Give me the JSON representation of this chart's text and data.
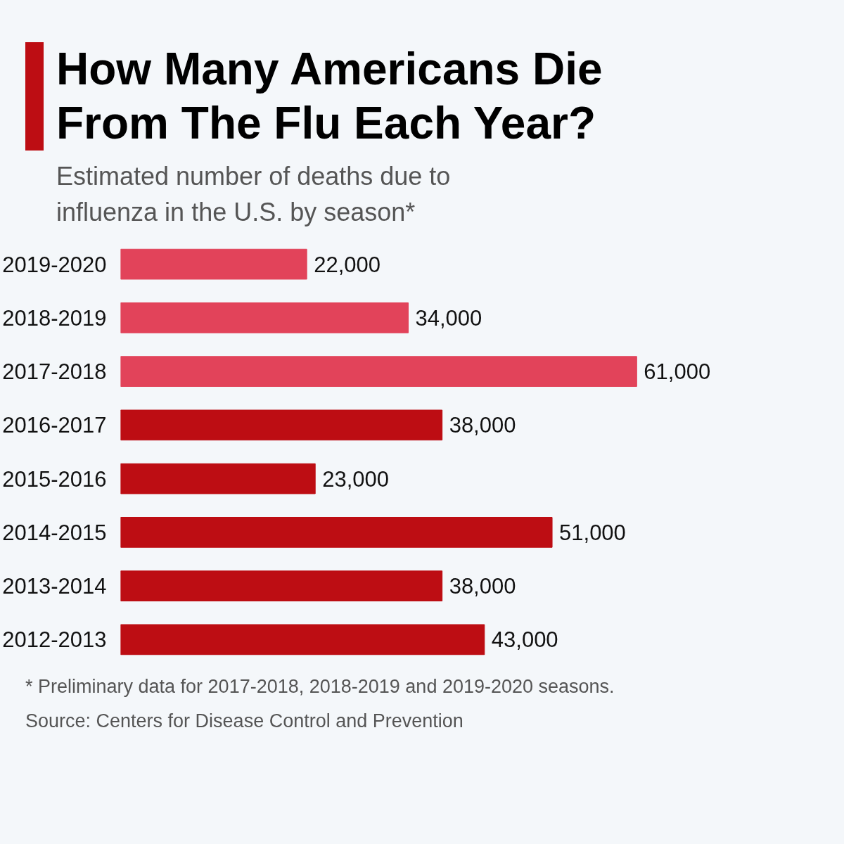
{
  "chart_data": {
    "type": "bar",
    "orientation": "horizontal",
    "title": "How Many Americans Die From The Flu Each Year?",
    "subtitle": "Estimated number of deaths due to influenza in the U.S. by season*",
    "categories": [
      "2019-2020",
      "2018-2019",
      "2017-2018",
      "2016-2017",
      "2015-2016",
      "2014-2015",
      "2013-2014",
      "2012-2013"
    ],
    "values": [
      22000,
      34000,
      61000,
      38000,
      23000,
      51000,
      38000,
      43000
    ],
    "colors": [
      "#e2435a",
      "#e2435a",
      "#e2435a",
      "#bd0d13",
      "#bd0d13",
      "#bd0d13",
      "#bd0d13",
      "#bd0d13"
    ],
    "value_labels": [
      "22,000",
      "34,000",
      "61,000",
      "38,000",
      "23,000",
      "51,000",
      "38,000",
      "43,000"
    ],
    "annotations": [
      "* Preliminary data for 2017-2018, 2018-2019 and 2019-2020 seasons.",
      "Source: Centers for Disease Control and Prevention"
    ]
  }
}
